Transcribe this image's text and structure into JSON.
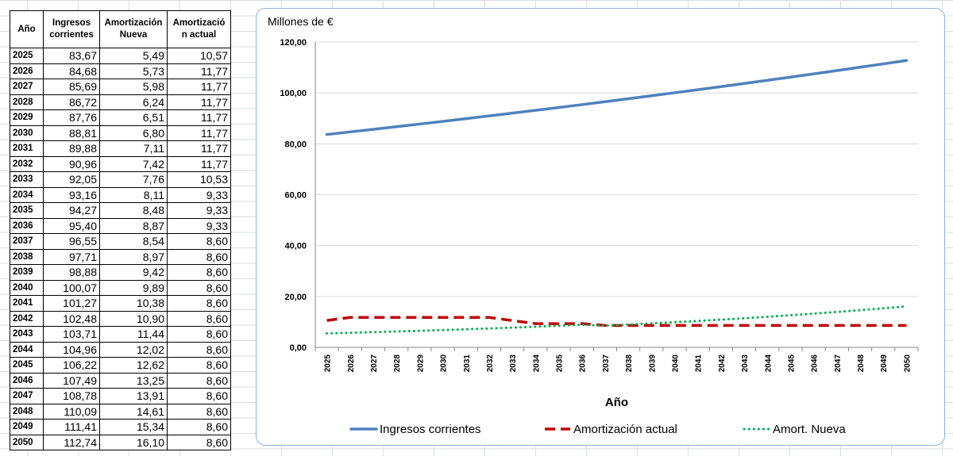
{
  "table": {
    "headers": [
      "Año",
      "Ingresos corrientes",
      "Amortización Nueva",
      "Amortización actual"
    ],
    "header_lines": [
      [
        "Año"
      ],
      [
        "Ingresos",
        "corrientes"
      ],
      [
        "Amortización",
        "Nueva"
      ],
      [
        "Amortizació",
        "n actual"
      ]
    ],
    "rows": [
      [
        "2025",
        "83,67",
        "5,49",
        "10,57"
      ],
      [
        "2026",
        "84,68",
        "5,73",
        "11,77"
      ],
      [
        "2027",
        "85,69",
        "5,98",
        "11,77"
      ],
      [
        "2028",
        "86,72",
        "6,24",
        "11,77"
      ],
      [
        "2029",
        "87,76",
        "6,51",
        "11,77"
      ],
      [
        "2030",
        "88,81",
        "6,80",
        "11,77"
      ],
      [
        "2031",
        "89,88",
        "7,11",
        "11,77"
      ],
      [
        "2032",
        "90,96",
        "7,42",
        "11,77"
      ],
      [
        "2033",
        "92,05",
        "7,76",
        "10,53"
      ],
      [
        "2034",
        "93,16",
        "8,11",
        "9,33"
      ],
      [
        "2035",
        "94,27",
        "8,48",
        "9,33"
      ],
      [
        "2036",
        "95,40",
        "8,87",
        "9,33"
      ],
      [
        "2037",
        "96,55",
        "8,54",
        "8,60"
      ],
      [
        "2038",
        "97,71",
        "8,97",
        "8,60"
      ],
      [
        "2039",
        "98,88",
        "9,42",
        "8,60"
      ],
      [
        "2040",
        "100,07",
        "9,89",
        "8,60"
      ],
      [
        "2041",
        "101,27",
        "10,38",
        "8,60"
      ],
      [
        "2042",
        "102,48",
        "10,90",
        "8,60"
      ],
      [
        "2043",
        "103,71",
        "11,44",
        "8,60"
      ],
      [
        "2044",
        "104,96",
        "12,02",
        "8,60"
      ],
      [
        "2045",
        "106,22",
        "12,62",
        "8,60"
      ],
      [
        "2046",
        "107,49",
        "13,25",
        "8,60"
      ],
      [
        "2047",
        "108,78",
        "13,91",
        "8,60"
      ],
      [
        "2048",
        "110,09",
        "14,61",
        "8,60"
      ],
      [
        "2049",
        "111,41",
        "15,34",
        "8,60"
      ],
      [
        "2050",
        "112,74",
        "16,10",
        "8,60"
      ]
    ]
  },
  "chart_data": {
    "type": "line",
    "ylabel": "Millones de €",
    "xlabel": "Año",
    "ylim": [
      0,
      120
    ],
    "yticks": [
      "0,00",
      "20,00",
      "40,00",
      "60,00",
      "80,00",
      "100,00",
      "120,00"
    ],
    "grid": "horizontal",
    "legend_position": "bottom",
    "categories": [
      "2025",
      "2026",
      "2027",
      "2028",
      "2029",
      "2030",
      "2031",
      "2032",
      "2033",
      "2034",
      "2035",
      "2036",
      "2037",
      "2038",
      "2039",
      "2040",
      "2041",
      "2042",
      "2043",
      "2044",
      "2045",
      "2046",
      "2047",
      "2048",
      "2049",
      "2050"
    ],
    "series": [
      {
        "name": "Ingresos corrientes",
        "color": "#4f81bd",
        "style": "solid",
        "values": [
          83.67,
          84.68,
          85.69,
          86.72,
          87.76,
          88.81,
          89.88,
          90.96,
          92.05,
          93.16,
          94.27,
          95.4,
          96.55,
          97.71,
          98.88,
          100.07,
          101.27,
          102.48,
          103.71,
          104.96,
          106.22,
          107.49,
          108.78,
          110.09,
          111.41,
          112.74
        ]
      },
      {
        "name": "Amortización actual",
        "color": "#c00000",
        "style": "dashed",
        "values": [
          10.57,
          11.77,
          11.77,
          11.77,
          11.77,
          11.77,
          11.77,
          11.77,
          10.53,
          9.33,
          9.33,
          9.33,
          8.6,
          8.6,
          8.6,
          8.6,
          8.6,
          8.6,
          8.6,
          8.6,
          8.6,
          8.6,
          8.6,
          8.6,
          8.6,
          8.6
        ]
      },
      {
        "name": "Amort. Nueva",
        "color": "#00b050",
        "style": "dotted",
        "values": [
          5.49,
          5.73,
          5.98,
          6.24,
          6.51,
          6.8,
          7.11,
          7.42,
          7.76,
          8.11,
          8.48,
          8.87,
          8.54,
          8.97,
          9.42,
          9.89,
          10.38,
          10.9,
          11.44,
          12.02,
          12.62,
          13.25,
          13.91,
          14.61,
          15.34,
          16.1
        ]
      }
    ]
  }
}
